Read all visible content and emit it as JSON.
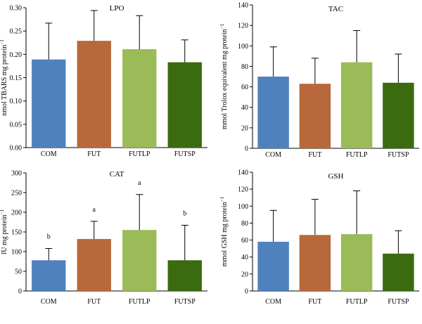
{
  "colors": [
    "#4f81bd",
    "#b8683a",
    "#9bbb59",
    "#3a6b0e"
  ],
  "chart_data": [
    {
      "type": "bar",
      "title": "LPO",
      "ylabel": "nmol TBARS mg protein",
      "ylabel_sup": "−1",
      "ylim": [
        0,
        0.3
      ],
      "yticks": [
        "0.00",
        "0.05",
        "0.10",
        "0.15",
        "0.20",
        "0.25",
        "0.30"
      ],
      "categories": [
        "COM",
        "FUT",
        "FUTLP",
        "FUTSP"
      ],
      "values": [
        0.189,
        0.229,
        0.211,
        0.183
      ],
      "errors": [
        0.078,
        0.065,
        0.072,
        0.048
      ],
      "labels": [
        "",
        "",
        "",
        ""
      ]
    },
    {
      "type": "bar",
      "title": "TAC",
      "ylabel": "mmol Trolox equivalent mg protein",
      "ylabel_sup": "−1",
      "ylim": [
        0,
        140
      ],
      "yticks": [
        "0",
        "20",
        "40",
        "60",
        "80",
        "100",
        "120",
        "140"
      ],
      "categories": [
        "COM",
        "FUT",
        "FUTLP",
        "FUTSP"
      ],
      "values": [
        70,
        63,
        84,
        64
      ],
      "errors": [
        29,
        25,
        31,
        28
      ],
      "labels": [
        "",
        "",
        "",
        ""
      ]
    },
    {
      "type": "bar",
      "title": "CAT",
      "ylabel": "IU mg protein",
      "ylabel_sup": "−1",
      "ylim": [
        0,
        300
      ],
      "yticks": [
        "0",
        "50",
        "100",
        "150",
        "200",
        "250",
        "300"
      ],
      "categories": [
        "COM",
        "FUT",
        "FUTLP",
        "FUTSP"
      ],
      "values": [
        78,
        132,
        155,
        78
      ],
      "errors": [
        30,
        45,
        90,
        89
      ],
      "labels": [
        "b",
        "a",
        "a",
        "b"
      ]
    },
    {
      "type": "bar",
      "title": "GSH",
      "ylabel": "mmol GSH mg protein",
      "ylabel_sup": "−1",
      "ylim": [
        0,
        140
      ],
      "yticks": [
        "0",
        "20",
        "40",
        "60",
        "80",
        "100",
        "120",
        "140"
      ],
      "categories": [
        "COM",
        "FUT",
        "FUTLP",
        "FUTSP"
      ],
      "values": [
        58,
        66,
        67,
        44
      ],
      "errors": [
        37,
        42,
        51,
        27
      ],
      "labels": [
        "",
        "",
        "",
        ""
      ]
    }
  ]
}
